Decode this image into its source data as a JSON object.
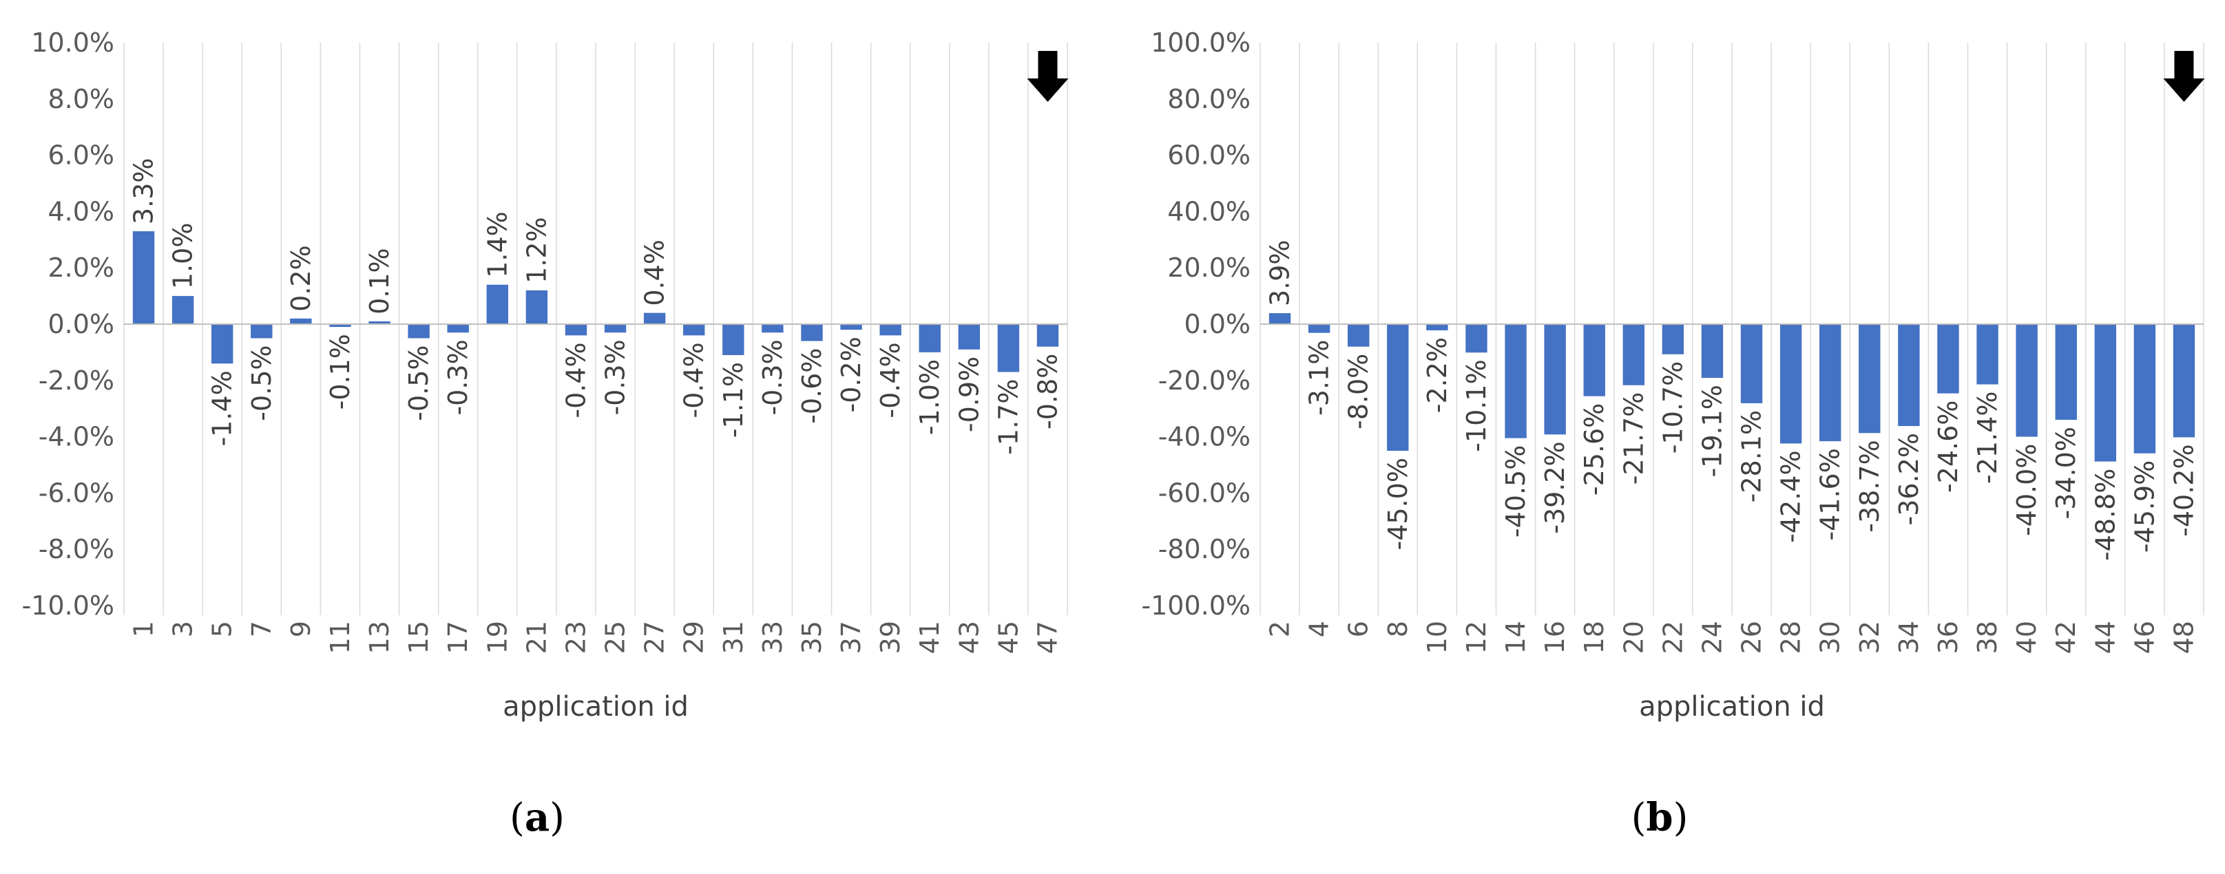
{
  "chart_data": [
    {
      "type": "bar",
      "caption_letter": "a",
      "xlabel": "application id",
      "ylim": [
        -10,
        10
      ],
      "yticks": [
        "-10.0%",
        "-8.0%",
        "-6.0%",
        "-4.0%",
        "-2.0%",
        "0.0%",
        "2.0%",
        "4.0%",
        "6.0%",
        "8.0%",
        "10.0%"
      ],
      "categories": [
        "1",
        "3",
        "5",
        "7",
        "9",
        "11",
        "13",
        "15",
        "17",
        "19",
        "21",
        "23",
        "25",
        "27",
        "29",
        "31",
        "33",
        "35",
        "37",
        "39",
        "41",
        "43",
        "45",
        "47"
      ],
      "values": [
        3.3,
        1.0,
        -1.4,
        -0.5,
        0.2,
        -0.1,
        0.1,
        -0.5,
        -0.3,
        1.4,
        1.2,
        -0.4,
        -0.3,
        0.4,
        -0.4,
        -1.1,
        -0.3,
        -0.6,
        -0.2,
        -0.4,
        -1.0,
        -0.9,
        -1.7,
        -0.8
      ],
      "labels": [
        "3.3%",
        "1.0%",
        "-1.4%",
        "-0.5%",
        "0.2%",
        "-0.1%",
        "0.1%",
        "-0.5%",
        "-0.3%",
        "1.4%",
        "1.2%",
        "-0.4%",
        "-0.3%",
        "0.4%",
        "-0.4%",
        "-1.1%",
        "-0.3%",
        "-0.6%",
        "-0.2%",
        "-0.4%",
        "-1.0%",
        "-0.9%",
        "-1.7%",
        "-0.8%"
      ],
      "bar_color": "#4472c4",
      "grid": "vertical",
      "annotation": "down-arrow-icon"
    },
    {
      "type": "bar",
      "caption_letter": "b",
      "xlabel": "application id",
      "ylim": [
        -100,
        100
      ],
      "yticks": [
        "-100.0%",
        "-80.0%",
        "-60.0%",
        "-40.0%",
        "-20.0%",
        "0.0%",
        "20.0%",
        "40.0%",
        "60.0%",
        "80.0%",
        "100.0%"
      ],
      "categories": [
        "2",
        "4",
        "6",
        "8",
        "10",
        "12",
        "14",
        "16",
        "18",
        "20",
        "22",
        "24",
        "26",
        "28",
        "30",
        "32",
        "34",
        "36",
        "38",
        "40",
        "42",
        "44",
        "46",
        "48"
      ],
      "values": [
        3.9,
        -3.1,
        -8.0,
        -45.0,
        -2.2,
        -10.1,
        -40.5,
        -39.2,
        -25.6,
        -21.7,
        -10.7,
        -19.1,
        -28.1,
        -42.4,
        -41.6,
        -38.7,
        -36.2,
        -24.6,
        -21.4,
        -40.0,
        -34.0,
        -48.8,
        -45.9,
        -40.2
      ],
      "labels": [
        "3.9%",
        "-3.1%",
        "-8.0%",
        "-45.0%",
        "-2.2%",
        "-10.1%",
        "-40.5%",
        "-39.2%",
        "-25.6%",
        "-21.7%",
        "-10.7%",
        "-19.1%",
        "-28.1%",
        "-42.4%",
        "-41.6%",
        "-38.7%",
        "-36.2%",
        "-24.6%",
        "-21.4%",
        "-40.0%",
        "-34.0%",
        "-48.8%",
        "-45.9%",
        "-40.2%"
      ],
      "bar_color": "#4472c4",
      "grid": "vertical",
      "annotation": "down-arrow-icon"
    }
  ]
}
